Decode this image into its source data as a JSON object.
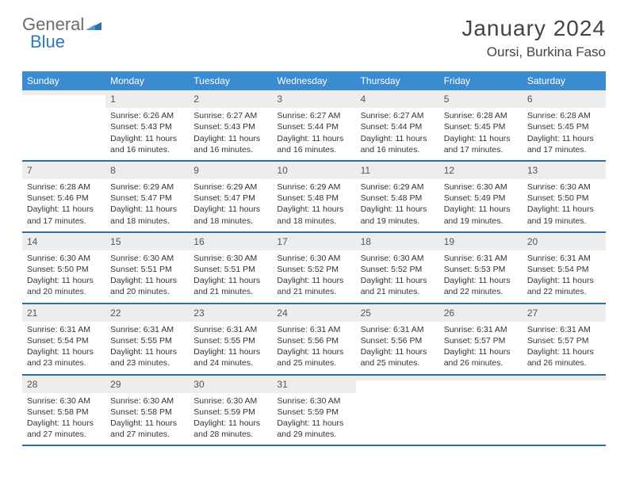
{
  "logo": {
    "word1": "General",
    "word2": "Blue",
    "color_gray": "#6b6b6b",
    "color_blue": "#2f79c2",
    "triangle_color": "#2f6fa8"
  },
  "title": "January 2024",
  "location": "Oursi, Burkina Faso",
  "header_bg": "#3b8bd0",
  "border_color": "#2f6fa8",
  "daynum_bg": "#ededed",
  "text_color": "#333333",
  "font_family": "Arial",
  "weekdays": [
    "Sunday",
    "Monday",
    "Tuesday",
    "Wednesday",
    "Thursday",
    "Friday",
    "Saturday"
  ],
  "weeks": [
    [
      {
        "n": "",
        "sr": "",
        "ss": "",
        "dl": ""
      },
      {
        "n": "1",
        "sr": "Sunrise: 6:26 AM",
        "ss": "Sunset: 5:43 PM",
        "dl": "Daylight: 11 hours and 16 minutes."
      },
      {
        "n": "2",
        "sr": "Sunrise: 6:27 AM",
        "ss": "Sunset: 5:43 PM",
        "dl": "Daylight: 11 hours and 16 minutes."
      },
      {
        "n": "3",
        "sr": "Sunrise: 6:27 AM",
        "ss": "Sunset: 5:44 PM",
        "dl": "Daylight: 11 hours and 16 minutes."
      },
      {
        "n": "4",
        "sr": "Sunrise: 6:27 AM",
        "ss": "Sunset: 5:44 PM",
        "dl": "Daylight: 11 hours and 16 minutes."
      },
      {
        "n": "5",
        "sr": "Sunrise: 6:28 AM",
        "ss": "Sunset: 5:45 PM",
        "dl": "Daylight: 11 hours and 17 minutes."
      },
      {
        "n": "6",
        "sr": "Sunrise: 6:28 AM",
        "ss": "Sunset: 5:45 PM",
        "dl": "Daylight: 11 hours and 17 minutes."
      }
    ],
    [
      {
        "n": "7",
        "sr": "Sunrise: 6:28 AM",
        "ss": "Sunset: 5:46 PM",
        "dl": "Daylight: 11 hours and 17 minutes."
      },
      {
        "n": "8",
        "sr": "Sunrise: 6:29 AM",
        "ss": "Sunset: 5:47 PM",
        "dl": "Daylight: 11 hours and 18 minutes."
      },
      {
        "n": "9",
        "sr": "Sunrise: 6:29 AM",
        "ss": "Sunset: 5:47 PM",
        "dl": "Daylight: 11 hours and 18 minutes."
      },
      {
        "n": "10",
        "sr": "Sunrise: 6:29 AM",
        "ss": "Sunset: 5:48 PM",
        "dl": "Daylight: 11 hours and 18 minutes."
      },
      {
        "n": "11",
        "sr": "Sunrise: 6:29 AM",
        "ss": "Sunset: 5:48 PM",
        "dl": "Daylight: 11 hours and 19 minutes."
      },
      {
        "n": "12",
        "sr": "Sunrise: 6:30 AM",
        "ss": "Sunset: 5:49 PM",
        "dl": "Daylight: 11 hours and 19 minutes."
      },
      {
        "n": "13",
        "sr": "Sunrise: 6:30 AM",
        "ss": "Sunset: 5:50 PM",
        "dl": "Daylight: 11 hours and 19 minutes."
      }
    ],
    [
      {
        "n": "14",
        "sr": "Sunrise: 6:30 AM",
        "ss": "Sunset: 5:50 PM",
        "dl": "Daylight: 11 hours and 20 minutes."
      },
      {
        "n": "15",
        "sr": "Sunrise: 6:30 AM",
        "ss": "Sunset: 5:51 PM",
        "dl": "Daylight: 11 hours and 20 minutes."
      },
      {
        "n": "16",
        "sr": "Sunrise: 6:30 AM",
        "ss": "Sunset: 5:51 PM",
        "dl": "Daylight: 11 hours and 21 minutes."
      },
      {
        "n": "17",
        "sr": "Sunrise: 6:30 AM",
        "ss": "Sunset: 5:52 PM",
        "dl": "Daylight: 11 hours and 21 minutes."
      },
      {
        "n": "18",
        "sr": "Sunrise: 6:30 AM",
        "ss": "Sunset: 5:52 PM",
        "dl": "Daylight: 11 hours and 21 minutes."
      },
      {
        "n": "19",
        "sr": "Sunrise: 6:31 AM",
        "ss": "Sunset: 5:53 PM",
        "dl": "Daylight: 11 hours and 22 minutes."
      },
      {
        "n": "20",
        "sr": "Sunrise: 6:31 AM",
        "ss": "Sunset: 5:54 PM",
        "dl": "Daylight: 11 hours and 22 minutes."
      }
    ],
    [
      {
        "n": "21",
        "sr": "Sunrise: 6:31 AM",
        "ss": "Sunset: 5:54 PM",
        "dl": "Daylight: 11 hours and 23 minutes."
      },
      {
        "n": "22",
        "sr": "Sunrise: 6:31 AM",
        "ss": "Sunset: 5:55 PM",
        "dl": "Daylight: 11 hours and 23 minutes."
      },
      {
        "n": "23",
        "sr": "Sunrise: 6:31 AM",
        "ss": "Sunset: 5:55 PM",
        "dl": "Daylight: 11 hours and 24 minutes."
      },
      {
        "n": "24",
        "sr": "Sunrise: 6:31 AM",
        "ss": "Sunset: 5:56 PM",
        "dl": "Daylight: 11 hours and 25 minutes."
      },
      {
        "n": "25",
        "sr": "Sunrise: 6:31 AM",
        "ss": "Sunset: 5:56 PM",
        "dl": "Daylight: 11 hours and 25 minutes."
      },
      {
        "n": "26",
        "sr": "Sunrise: 6:31 AM",
        "ss": "Sunset: 5:57 PM",
        "dl": "Daylight: 11 hours and 26 minutes."
      },
      {
        "n": "27",
        "sr": "Sunrise: 6:31 AM",
        "ss": "Sunset: 5:57 PM",
        "dl": "Daylight: 11 hours and 26 minutes."
      }
    ],
    [
      {
        "n": "28",
        "sr": "Sunrise: 6:30 AM",
        "ss": "Sunset: 5:58 PM",
        "dl": "Daylight: 11 hours and 27 minutes."
      },
      {
        "n": "29",
        "sr": "Sunrise: 6:30 AM",
        "ss": "Sunset: 5:58 PM",
        "dl": "Daylight: 11 hours and 27 minutes."
      },
      {
        "n": "30",
        "sr": "Sunrise: 6:30 AM",
        "ss": "Sunset: 5:59 PM",
        "dl": "Daylight: 11 hours and 28 minutes."
      },
      {
        "n": "31",
        "sr": "Sunrise: 6:30 AM",
        "ss": "Sunset: 5:59 PM",
        "dl": "Daylight: 11 hours and 29 minutes."
      },
      {
        "n": "",
        "sr": "",
        "ss": "",
        "dl": ""
      },
      {
        "n": "",
        "sr": "",
        "ss": "",
        "dl": ""
      },
      {
        "n": "",
        "sr": "",
        "ss": "",
        "dl": ""
      }
    ]
  ]
}
